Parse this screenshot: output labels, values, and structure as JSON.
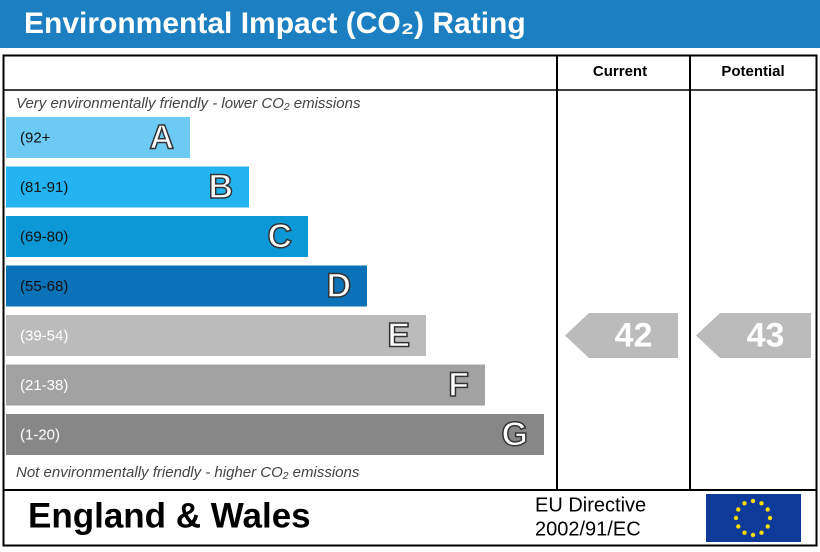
{
  "header": {
    "title": "Environmental Impact (CO₂) Rating"
  },
  "columns": {
    "current": "Current",
    "potential": "Potential"
  },
  "top_note": "Very environmentally friendly - lower CO₂ emissions",
  "bottom_note": "Not environmentally friendly - higher CO₂ emissions",
  "bands": [
    {
      "range": "(92+",
      "letter": "A",
      "color": "#6ccaf4"
    },
    {
      "range": "(81-91)",
      "letter": "B",
      "color": "#22b3f0"
    },
    {
      "range": "(69-80)",
      "letter": "C",
      "color": "#0c98d6"
    },
    {
      "range": "(55-68)",
      "letter": "D",
      "color": "#0b72b7"
    },
    {
      "range": "(39-54)",
      "letter": "E",
      "color": "#bbbbbb"
    },
    {
      "range": "(21-38)",
      "letter": "F",
      "color": "#a2a2a2"
    },
    {
      "range": "(1-20)",
      "letter": "G",
      "color": "#878787"
    }
  ],
  "ratings": {
    "current": 42,
    "potential": 43
  },
  "footer": {
    "region": "England & Wales",
    "directive_line1": "EU Directive",
    "directive_line2": "2002/91/EC"
  }
}
